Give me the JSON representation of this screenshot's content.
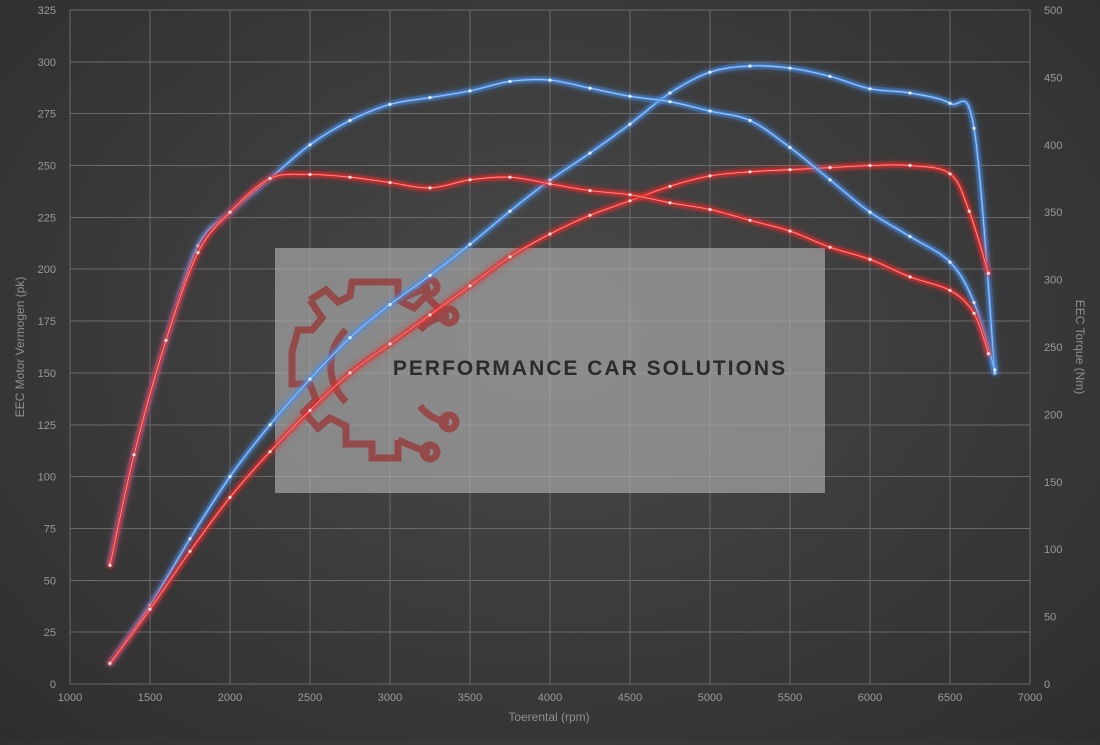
{
  "chart_data": {
    "type": "line",
    "xlabel": "Toerental (rpm)",
    "ylabel_left": "EEC Motor Vermogen (pk)",
    "ylabel_right": "EEC Torque (Nm)",
    "xlim": [
      1000,
      7000
    ],
    "ylim_left": [
      0,
      325
    ],
    "ylim_right": [
      0,
      500
    ],
    "x_ticks": [
      1000,
      1500,
      2000,
      2500,
      3000,
      3500,
      4000,
      4500,
      5000,
      5500,
      6000,
      6500,
      7000
    ],
    "y_left_ticks": [
      0,
      25,
      50,
      75,
      100,
      125,
      150,
      175,
      200,
      225,
      250,
      275,
      300,
      325
    ],
    "y_right_ticks": [
      0,
      50,
      100,
      150,
      200,
      250,
      300,
      350,
      400,
      450,
      500
    ],
    "grid": true,
    "series": [
      {
        "axis": "left",
        "color": "#4a90e8",
        "x": [
          1250,
          1500,
          1750,
          2000,
          2250,
          2500,
          2750,
          3000,
          3250,
          3500,
          3750,
          4000,
          4250,
          4500,
          4750,
          5000,
          5250,
          5500,
          5750,
          6000,
          6250,
          6500,
          6650,
          6780
        ],
        "y": [
          10,
          38,
          70,
          100,
          125,
          147,
          167,
          183,
          197,
          212,
          228,
          243,
          256,
          270,
          285,
          295,
          298,
          297,
          293,
          287,
          285,
          280,
          268,
          150
        ]
      },
      {
        "axis": "left",
        "color": "#e82a2a",
        "x": [
          1250,
          1500,
          1750,
          2000,
          2250,
          2500,
          2750,
          3000,
          3250,
          3500,
          3750,
          4000,
          4250,
          4500,
          4750,
          5000,
          5250,
          5500,
          5750,
          6000,
          6250,
          6500,
          6620,
          6740
        ],
        "y": [
          10,
          36,
          64,
          90,
          112,
          132,
          150,
          164,
          178,
          192,
          206,
          217,
          226,
          233,
          240,
          245,
          247,
          248,
          249,
          250,
          250,
          246,
          228,
          198
        ]
      },
      {
        "axis": "right",
        "color": "#4a90e8",
        "x": [
          1250,
          1400,
          1600,
          1800,
          2000,
          2250,
          2500,
          2750,
          3000,
          3250,
          3500,
          3750,
          4000,
          4250,
          4500,
          4750,
          5000,
          5250,
          5500,
          5750,
          6000,
          6250,
          6500,
          6650,
          6780
        ],
        "y": [
          90,
          170,
          255,
          325,
          350,
          375,
          400,
          418,
          430,
          435,
          440,
          447,
          448,
          442,
          436,
          432,
          425,
          418,
          398,
          374,
          350,
          332,
          313,
          283,
          233
        ]
      },
      {
        "axis": "right",
        "color": "#e82a2a",
        "x": [
          1250,
          1400,
          1600,
          1800,
          2000,
          2250,
          2500,
          2750,
          3000,
          3250,
          3500,
          3750,
          4000,
          4250,
          4500,
          4750,
          5000,
          5250,
          5500,
          5750,
          6000,
          6250,
          6500,
          6650,
          6740
        ],
        "y": [
          88,
          170,
          255,
          320,
          350,
          375,
          378,
          376,
          372,
          368,
          374,
          376,
          371,
          366,
          363,
          357,
          352,
          344,
          336,
          324,
          315,
          302,
          292,
          275,
          245
        ]
      }
    ]
  },
  "watermark": {
    "text": "PERFORMANCE CAR SOLUTIONS"
  }
}
